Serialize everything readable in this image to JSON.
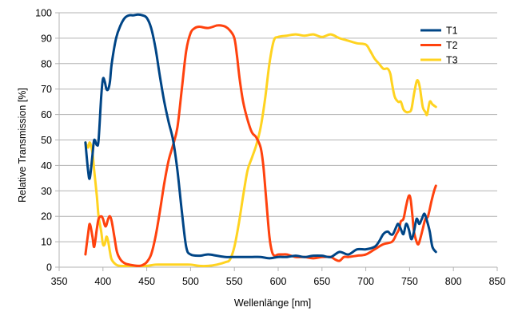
{
  "chart_data": {
    "type": "line",
    "title": "",
    "xlabel": "Wellenlänge [nm]",
    "ylabel": "Relative Transmission [%]",
    "xlim": [
      350,
      850
    ],
    "ylim": [
      0,
      100
    ],
    "x_ticks": [
      350,
      400,
      450,
      500,
      550,
      600,
      650,
      700,
      750,
      800,
      850
    ],
    "y_ticks": [
      0,
      10,
      20,
      30,
      40,
      50,
      60,
      70,
      80,
      90,
      100
    ],
    "grid": "horizontal",
    "legend_position": "top-right",
    "series": [
      {
        "name": "T1",
        "color": "#004586",
        "points": [
          [
            380,
            49
          ],
          [
            383,
            38
          ],
          [
            385,
            35
          ],
          [
            388,
            44
          ],
          [
            390,
            50
          ],
          [
            393,
            48
          ],
          [
            395,
            50
          ],
          [
            398,
            67
          ],
          [
            400,
            74
          ],
          [
            402,
            73
          ],
          [
            404,
            70
          ],
          [
            406,
            70
          ],
          [
            408,
            73
          ],
          [
            410,
            80
          ],
          [
            415,
            90
          ],
          [
            420,
            95
          ],
          [
            425,
            98
          ],
          [
            430,
            99
          ],
          [
            435,
            99
          ],
          [
            440,
            99.3
          ],
          [
            445,
            99
          ],
          [
            450,
            98
          ],
          [
            455,
            94
          ],
          [
            460,
            86
          ],
          [
            465,
            75
          ],
          [
            470,
            65
          ],
          [
            475,
            57
          ],
          [
            480,
            50
          ],
          [
            485,
            38
          ],
          [
            490,
            22
          ],
          [
            495,
            8
          ],
          [
            500,
            5
          ],
          [
            510,
            4.5
          ],
          [
            520,
            5
          ],
          [
            530,
            4.5
          ],
          [
            540,
            4
          ],
          [
            550,
            4
          ],
          [
            560,
            4
          ],
          [
            570,
            4
          ],
          [
            580,
            4
          ],
          [
            590,
            3.5
          ],
          [
            600,
            4
          ],
          [
            610,
            4
          ],
          [
            620,
            4.5
          ],
          [
            630,
            4
          ],
          [
            640,
            4.5
          ],
          [
            650,
            4.5
          ],
          [
            660,
            4
          ],
          [
            670,
            6
          ],
          [
            680,
            5
          ],
          [
            690,
            7
          ],
          [
            700,
            7
          ],
          [
            710,
            8
          ],
          [
            715,
            10
          ],
          [
            720,
            13
          ],
          [
            725,
            14
          ],
          [
            728,
            13
          ],
          [
            731,
            13
          ],
          [
            735,
            16
          ],
          [
            737,
            17
          ],
          [
            740,
            15
          ],
          [
            743,
            13
          ],
          [
            746,
            17
          ],
          [
            749,
            15
          ],
          [
            752,
            11
          ],
          [
            755,
            14
          ],
          [
            758,
            19
          ],
          [
            761,
            17
          ],
          [
            764,
            19
          ],
          [
            767,
            21
          ],
          [
            770,
            18
          ],
          [
            773,
            14
          ],
          [
            776,
            8
          ],
          [
            780,
            6
          ]
        ]
      },
      {
        "name": "T2",
        "color": "#ff420e",
        "points": [
          [
            380,
            5
          ],
          [
            383,
            13
          ],
          [
            385,
            17
          ],
          [
            388,
            12
          ],
          [
            390,
            8
          ],
          [
            393,
            15
          ],
          [
            395,
            19
          ],
          [
            398,
            20
          ],
          [
            400,
            19
          ],
          [
            403,
            16
          ],
          [
            406,
            19
          ],
          [
            408,
            20
          ],
          [
            410,
            18
          ],
          [
            413,
            12
          ],
          [
            416,
            6
          ],
          [
            420,
            3
          ],
          [
            425,
            1.5
          ],
          [
            430,
            1
          ],
          [
            435,
            0.7
          ],
          [
            440,
            0.5
          ],
          [
            445,
            0.8
          ],
          [
            450,
            2
          ],
          [
            455,
            5
          ],
          [
            460,
            12
          ],
          [
            465,
            22
          ],
          [
            470,
            33
          ],
          [
            475,
            42
          ],
          [
            480,
            48
          ],
          [
            485,
            55
          ],
          [
            490,
            70
          ],
          [
            495,
            85
          ],
          [
            500,
            92
          ],
          [
            505,
            94
          ],
          [
            510,
            94.5
          ],
          [
            520,
            94
          ],
          [
            530,
            95
          ],
          [
            535,
            95
          ],
          [
            540,
            94.5
          ],
          [
            545,
            93
          ],
          [
            550,
            90
          ],
          [
            553,
            83
          ],
          [
            556,
            74
          ],
          [
            560,
            65
          ],
          [
            565,
            58
          ],
          [
            570,
            53
          ],
          [
            575,
            51
          ],
          [
            580,
            47
          ],
          [
            583,
            40
          ],
          [
            586,
            28
          ],
          [
            590,
            12
          ],
          [
            593,
            6
          ],
          [
            596,
            4.5
          ],
          [
            600,
            5
          ],
          [
            605,
            5
          ],
          [
            610,
            5
          ],
          [
            620,
            4
          ],
          [
            630,
            4
          ],
          [
            640,
            3.5
          ],
          [
            650,
            4
          ],
          [
            660,
            4
          ],
          [
            665,
            3
          ],
          [
            670,
            2.5
          ],
          [
            675,
            4
          ],
          [
            680,
            4
          ],
          [
            690,
            4.5
          ],
          [
            700,
            5
          ],
          [
            710,
            7
          ],
          [
            720,
            9
          ],
          [
            730,
            10
          ],
          [
            735,
            13
          ],
          [
            738,
            15
          ],
          [
            740,
            18
          ],
          [
            743,
            19
          ],
          [
            746,
            24
          ],
          [
            749,
            28
          ],
          [
            751,
            27
          ],
          [
            753,
            21
          ],
          [
            755,
            14
          ],
          [
            758,
            10
          ],
          [
            760,
            9
          ],
          [
            762,
            11
          ],
          [
            765,
            15
          ],
          [
            768,
            19
          ],
          [
            771,
            20
          ],
          [
            775,
            26
          ],
          [
            778,
            30
          ],
          [
            780,
            32
          ]
        ]
      },
      {
        "name": "T3",
        "color": "#ffd320",
        "points": [
          [
            380,
            49
          ],
          [
            383,
            47
          ],
          [
            385,
            49
          ],
          [
            388,
            45
          ],
          [
            390,
            38
          ],
          [
            393,
            28
          ],
          [
            395,
            20
          ],
          [
            398,
            14
          ],
          [
            400,
            9
          ],
          [
            402,
            9
          ],
          [
            404,
            12
          ],
          [
            406,
            10
          ],
          [
            408,
            6
          ],
          [
            410,
            3
          ],
          [
            415,
            1
          ],
          [
            420,
            0.5
          ],
          [
            430,
            0.5
          ],
          [
            440,
            0.5
          ],
          [
            450,
            0.5
          ],
          [
            460,
            1
          ],
          [
            470,
            1
          ],
          [
            480,
            1
          ],
          [
            490,
            1
          ],
          [
            500,
            1
          ],
          [
            510,
            0.5
          ],
          [
            520,
            0.5
          ],
          [
            530,
            1
          ],
          [
            540,
            2
          ],
          [
            545,
            3
          ],
          [
            550,
            8
          ],
          [
            555,
            17
          ],
          [
            560,
            28
          ],
          [
            565,
            38
          ],
          [
            570,
            43
          ],
          [
            575,
            48
          ],
          [
            580,
            55
          ],
          [
            585,
            66
          ],
          [
            590,
            80
          ],
          [
            595,
            89
          ],
          [
            600,
            90.5
          ],
          [
            610,
            91
          ],
          [
            620,
            91.5
          ],
          [
            630,
            91
          ],
          [
            640,
            91.5
          ],
          [
            650,
            90.5
          ],
          [
            660,
            91.5
          ],
          [
            670,
            90
          ],
          [
            680,
            89
          ],
          [
            690,
            88
          ],
          [
            700,
            87.5
          ],
          [
            705,
            85
          ],
          [
            710,
            82
          ],
          [
            715,
            80
          ],
          [
            720,
            78
          ],
          [
            725,
            78
          ],
          [
            728,
            76
          ],
          [
            730,
            72
          ],
          [
            733,
            67
          ],
          [
            737,
            65
          ],
          [
            740,
            65
          ],
          [
            743,
            62
          ],
          [
            746,
            61
          ],
          [
            749,
            61
          ],
          [
            752,
            62
          ],
          [
            755,
            68
          ],
          [
            758,
            73
          ],
          [
            760,
            73
          ],
          [
            762,
            70
          ],
          [
            765,
            63
          ],
          [
            768,
            61
          ],
          [
            770,
            60
          ],
          [
            773,
            65
          ],
          [
            776,
            64
          ],
          [
            780,
            63
          ]
        ]
      }
    ]
  }
}
